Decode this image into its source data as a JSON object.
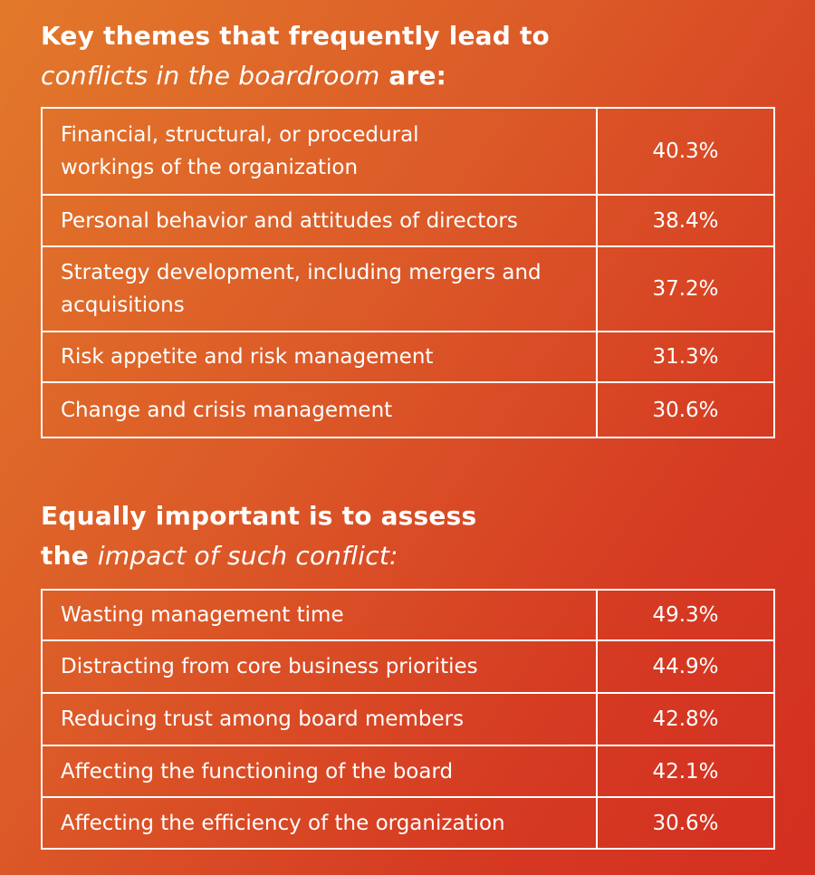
{
  "section1": {
    "heading_line1": "Key themes that frequently lead to",
    "heading_line2_italic": "conflicts in the boardroom",
    "heading_line2_bold": " are:",
    "rows": [
      {
        "label": "Financial, structural, or procedural workings of the organization",
        "value": "40.3%"
      },
      {
        "label": "Personal behavior and attitudes of directors",
        "value": "38.4%"
      },
      {
        "label": "Strategy development, including mergers and acquisitions",
        "value": "37.2%"
      },
      {
        "label": "Risk appetite and risk management",
        "value": "31.3%"
      },
      {
        "label": "Change and crisis management",
        "value": "30.6%"
      }
    ]
  },
  "section2": {
    "heading_line1": "Equally important is to assess",
    "heading_line2_bold": "the ",
    "heading_line2_italic": "impact of such conflict:",
    "rows": [
      {
        "label": "Wasting management time",
        "value": "49.3%"
      },
      {
        "label": "Distracting from core business priorities",
        "value": "44.9%"
      },
      {
        "label": "Reducing trust among board members",
        "value": "42.8%"
      },
      {
        "label": "Affecting the functioning of the board",
        "value": "42.1%"
      },
      {
        "label": "Affecting the efficiency of the organization",
        "value": "30.6%"
      }
    ]
  },
  "colors": {
    "gradient_start": "#e2792a",
    "gradient_end": "#d42f21",
    "text": "#ffffff",
    "border": "#ffffff"
  }
}
